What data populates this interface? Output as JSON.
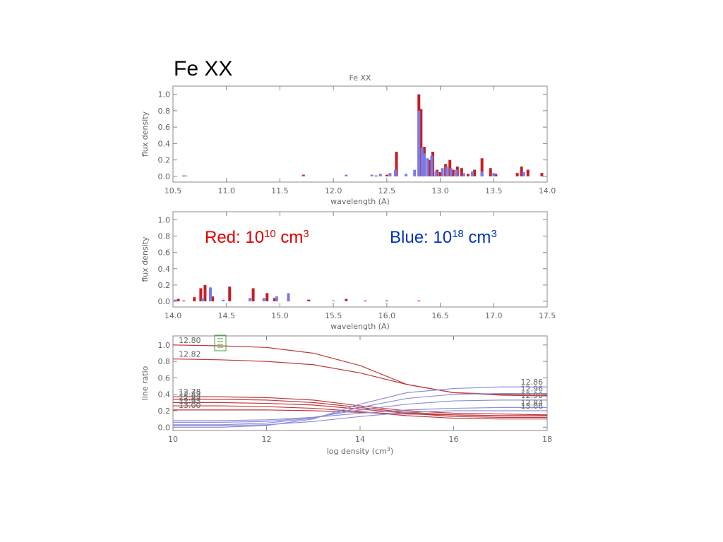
{
  "heading": "Fe XX",
  "chart_data": [
    {
      "type": "bar",
      "title": "Fe XX",
      "xlabel": "wavelength (A)",
      "ylabel": "flux density",
      "xlim": [
        10.5,
        14.0
      ],
      "ylim": [
        -0.07,
        1.1
      ],
      "xticks": [
        10.5,
        {
          "value": 11,
          "label": "11.0"
        },
        11.5,
        {
          "value": 12,
          "label": "12.0"
        },
        12.5,
        {
          "value": 13,
          "label": "13.0"
        },
        13.5,
        {
          "value": 14,
          "label": "14.0"
        }
      ],
      "yticks": [
        {
          "value": 0,
          "label": "0.0"
        },
        0.2,
        0.4,
        0.6,
        0.8,
        {
          "value": 1,
          "label": "1.0"
        }
      ],
      "series": [
        {
          "color": "#c41e24",
          "x": [
            10.6,
            11.72,
            12.4,
            12.5,
            12.59,
            12.8,
            12.82,
            12.85,
            12.9,
            12.93,
            12.97,
            13.0,
            13.05,
            13.09,
            13.12,
            13.16,
            13.2,
            13.26,
            13.32,
            13.39,
            13.47,
            13.52,
            13.72,
            13.76,
            13.82,
            13.95
          ],
          "values": [
            0.01,
            0.02,
            0.01,
            0.02,
            0.3,
            1.0,
            0.82,
            0.36,
            0.2,
            0.3,
            0.08,
            0.05,
            0.15,
            0.2,
            0.08,
            0.12,
            0.1,
            0.03,
            0.08,
            0.22,
            0.1,
            0.03,
            0.04,
            0.12,
            0.08,
            0.04
          ]
        },
        {
          "color": "#7b7be6",
          "x": [
            10.62,
            11.72,
            12.12,
            12.36,
            12.44,
            12.53,
            12.58,
            12.68,
            12.76,
            12.8,
            12.83,
            12.85,
            12.88,
            12.92,
            12.96,
            13.02,
            13.06,
            13.1,
            13.15,
            13.22,
            13.3,
            13.39,
            13.5,
            13.78
          ],
          "values": [
            0.01,
            0.01,
            0.02,
            0.02,
            0.03,
            0.04,
            0.08,
            0.03,
            0.08,
            0.8,
            0.35,
            0.28,
            0.22,
            0.25,
            0.06,
            0.1,
            0.12,
            0.1,
            0.08,
            0.04,
            0.06,
            0.06,
            0.04,
            0.05
          ]
        }
      ]
    },
    {
      "type": "bar",
      "xlabel": "wavelength (A)",
      "ylabel": "flux density",
      "xlim": [
        14.0,
        17.5
      ],
      "ylim": [
        -0.07,
        1.1
      ],
      "xticks": [
        {
          "value": 14,
          "label": "14.0"
        },
        14.5,
        {
          "value": 15,
          "label": "15.0"
        },
        15.5,
        {
          "value": 16,
          "label": "16.0"
        },
        16.5,
        {
          "value": 17,
          "label": "17.0"
        },
        17.5
      ],
      "yticks": [
        {
          "value": 0,
          "label": "0.0"
        },
        0.2,
        0.4,
        0.6,
        0.8,
        {
          "value": 1,
          "label": "1.0"
        }
      ],
      "annotations": [
        [
          "Red: 10",
          "10",
          " cm",
          "3"
        ],
        [
          "Blue: 10",
          "18",
          " cm",
          "3"
        ]
      ],
      "annotation_colors": [
        "#e00000",
        "#0033bb"
      ],
      "series": [
        {
          "color": "#c41e24",
          "x": [
            14.05,
            14.1,
            14.2,
            14.26,
            14.3,
            14.37,
            14.53,
            14.75,
            14.88,
            14.95,
            15.08,
            15.27,
            15.62,
            15.8,
            16.0,
            16.3
          ],
          "values": [
            0.03,
            0.01,
            0.05,
            0.16,
            0.2,
            0.06,
            0.18,
            0.16,
            0.1,
            0.04,
            0.04,
            0.02,
            0.03,
            0.01,
            0.01,
            0.01
          ]
        },
        {
          "color": "#7b7be6",
          "x": [
            14.02,
            14.28,
            14.35,
            14.47,
            14.72,
            14.85,
            14.97,
            15.08,
            15.5,
            15.62,
            16.0
          ],
          "values": [
            0.02,
            0.04,
            0.17,
            0.02,
            0.04,
            0.04,
            0.06,
            0.1,
            0.01,
            0.01,
            0.01
          ]
        }
      ]
    },
    {
      "type": "line",
      "xlabel": [
        "log density (cm",
        "3",
        ")"
      ],
      "ylabel": "line ratio",
      "xlim": [
        10,
        18
      ],
      "ylim": [
        -0.04,
        1.11
      ],
      "xticks": [
        10,
        12,
        14,
        16,
        18
      ],
      "yticks": [
        {
          "value": 0,
          "label": "0.0"
        },
        0.2,
        0.4,
        0.6,
        0.8,
        {
          "value": 1,
          "label": "1.0"
        }
      ],
      "x": [
        10,
        11,
        12,
        13,
        14,
        15,
        16,
        17,
        18
      ],
      "series": [
        {
          "name": "12.80",
          "color": "#c0393c",
          "values": [
            1.0,
            0.99,
            0.97,
            0.9,
            0.75,
            0.52,
            0.42,
            0.4,
            0.39
          ]
        },
        {
          "name": "12.82",
          "color": "#c0393c",
          "values": [
            0.83,
            0.82,
            0.8,
            0.76,
            0.66,
            0.52,
            0.42,
            0.39,
            0.38
          ]
        },
        {
          "name": "12.78",
          "color": "#c0393c",
          "values": [
            0.37,
            0.37,
            0.36,
            0.33,
            0.26,
            0.2,
            0.17,
            0.16,
            0.15
          ]
        },
        {
          "name": "12.83",
          "color": "#c0393c",
          "values": [
            0.34,
            0.34,
            0.33,
            0.3,
            0.24,
            0.18,
            0.15,
            0.14,
            0.14
          ]
        },
        {
          "name": "12.85",
          "color": "#c0393c",
          "values": [
            0.3,
            0.3,
            0.29,
            0.27,
            0.22,
            0.17,
            0.13,
            0.12,
            0.12
          ]
        },
        {
          "name": "12.93",
          "color": "#c0393c",
          "values": [
            0.26,
            0.26,
            0.25,
            0.23,
            0.19,
            0.14,
            0.11,
            0.1,
            0.1
          ]
        },
        {
          "name": "13.00",
          "color": "#c0393c",
          "values": [
            0.21,
            0.21,
            0.21,
            0.2,
            0.18,
            0.16,
            0.15,
            0.14,
            0.14
          ]
        },
        {
          "name": "12.86",
          "color": "#8f8fdc",
          "axis_side": "right",
          "values": [
            0.0,
            0.0,
            0.02,
            0.1,
            0.28,
            0.42,
            0.47,
            0.49,
            0.49
          ]
        },
        {
          "name": "12.96",
          "color": "#8f8fdc",
          "axis_side": "right",
          "values": [
            0.03,
            0.03,
            0.05,
            0.11,
            0.24,
            0.35,
            0.4,
            0.41,
            0.41
          ]
        },
        {
          "name": "12.90",
          "color": "#8f8fdc",
          "axis_side": "right",
          "values": [
            0.06,
            0.06,
            0.07,
            0.12,
            0.21,
            0.28,
            0.32,
            0.33,
            0.33
          ]
        },
        {
          "name": "12.84",
          "color": "#8f8fdc",
          "axis_side": "right",
          "values": [
            0.08,
            0.08,
            0.09,
            0.12,
            0.17,
            0.21,
            0.23,
            0.24,
            0.24
          ]
        },
        {
          "name": "13.06",
          "color": "#8f8fdc",
          "axis_side": "right",
          "values": [
            0.02,
            0.02,
            0.03,
            0.07,
            0.13,
            0.18,
            0.2,
            0.2,
            0.2
          ]
        }
      ]
    }
  ]
}
